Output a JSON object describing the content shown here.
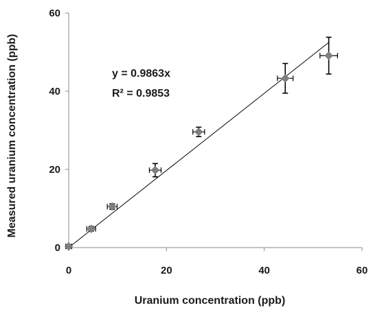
{
  "chart_data": {
    "type": "scatter",
    "xlabel": "Uranium concentration (ppb)",
    "ylabel": "Measured uranium concentration (ppb)",
    "xlim": [
      0,
      60
    ],
    "ylim": [
      0,
      60
    ],
    "xticks": [
      "0",
      "20",
      "40",
      "60"
    ],
    "yticks": [
      "0",
      "20",
      "40",
      "60"
    ],
    "grid": false,
    "points": [
      {
        "x": 0,
        "y": 0.3,
        "xerr": 0.6,
        "yerr": 0.4
      },
      {
        "x": 4.6,
        "y": 4.8,
        "xerr": 0.9,
        "yerr": 0.6
      },
      {
        "x": 8.9,
        "y": 10.5,
        "xerr": 1.0,
        "yerr": 0.7
      },
      {
        "x": 17.7,
        "y": 19.8,
        "xerr": 1.2,
        "yerr": 1.7
      },
      {
        "x": 26.6,
        "y": 29.6,
        "xerr": 1.2,
        "yerr": 1.2
      },
      {
        "x": 44.3,
        "y": 43.3,
        "xerr": 1.6,
        "yerr": 3.8
      },
      {
        "x": 53.2,
        "y": 49.1,
        "xerr": 1.8,
        "yerr": 4.7
      }
    ],
    "trendline": {
      "slope": 0.9863,
      "x_start": 0,
      "x_end": 53.2
    },
    "annotations": {
      "equation": "y = 0.9863x",
      "r_squared": "R² = 0.9853"
    },
    "marker_color": "#7f7f7f",
    "line_color": "#000000"
  }
}
